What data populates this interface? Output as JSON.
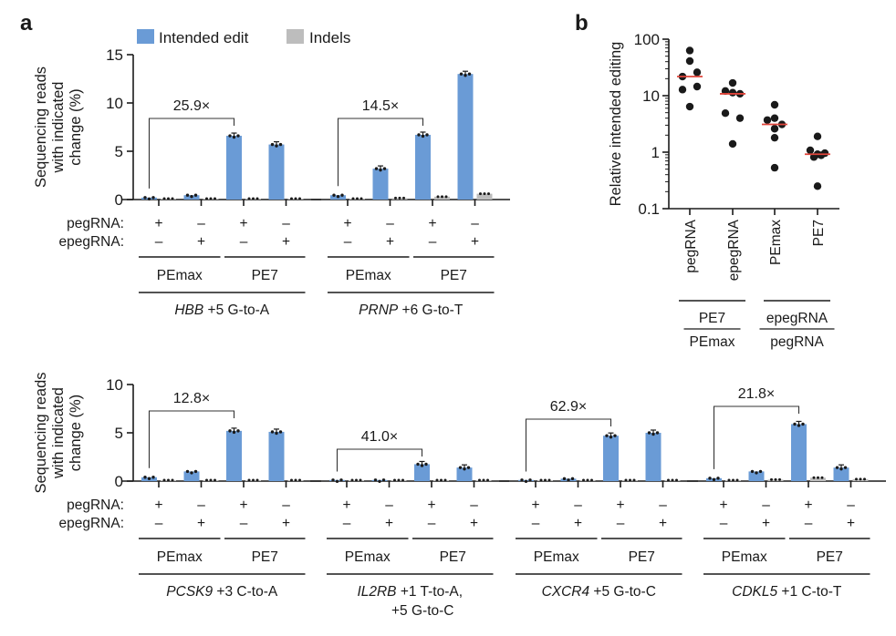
{
  "chart_data": [
    {
      "panel": "a",
      "type": "bar",
      "row": "top",
      "ylabel": [
        "Sequencing reads",
        "with indicated",
        "change (%)"
      ],
      "ylim": [
        0,
        15
      ],
      "yticks": [
        0,
        5,
        10,
        15
      ],
      "legend": {
        "position": "top",
        "entries": [
          {
            "name": "Intended edit",
            "color": "#6a9bd6"
          },
          {
            "name": "Indels",
            "color": "#bdbdbd"
          }
        ]
      },
      "row_labels": {
        "peg": "pegRNA:",
        "epeg": "epegRNA:"
      },
      "targets": [
        {
          "gene": "HBB",
          "edit": " +5 G-to-A",
          "edit_line2": "",
          "fold_change": "25.9×",
          "conditions": [
            {
              "editor": "PEmax",
              "pegRNA": "+",
              "epegRNA": "–",
              "intended": 0.2,
              "indels": 0.05
            },
            {
              "editor": "PEmax",
              "pegRNA": "–",
              "epegRNA": "+",
              "intended": 0.45,
              "indels": 0.05
            },
            {
              "editor": "PE7",
              "pegRNA": "+",
              "epegRNA": "–",
              "intended": 6.6,
              "indels": 0.1
            },
            {
              "editor": "PE7",
              "pegRNA": "–",
              "epegRNA": "+",
              "intended": 5.7,
              "indels": 0.08
            }
          ]
        },
        {
          "gene": "PRNP",
          "edit": " +6 G-to-T",
          "edit_line2": "",
          "fold_change": "14.5×",
          "conditions": [
            {
              "editor": "PEmax",
              "pegRNA": "+",
              "epegRNA": "–",
              "intended": 0.45,
              "indels": 0.1
            },
            {
              "editor": "PEmax",
              "pegRNA": "–",
              "epegRNA": "+",
              "intended": 3.2,
              "indels": 0.15
            },
            {
              "editor": "PE7",
              "pegRNA": "+",
              "epegRNA": "–",
              "intended": 6.7,
              "indels": 0.3
            },
            {
              "editor": "PE7",
              "pegRNA": "–",
              "epegRNA": "+",
              "intended": 13.0,
              "indels": 0.6
            }
          ]
        }
      ]
    },
    {
      "panel": "a",
      "type": "bar",
      "row": "bottom",
      "ylabel": [
        "Sequencing reads",
        "with indicated",
        "change (%)"
      ],
      "ylim": [
        0,
        10
      ],
      "yticks": [
        0,
        5,
        10
      ],
      "row_labels": {
        "peg": "pegRNA:",
        "epeg": "epegRNA:"
      },
      "targets": [
        {
          "gene": "PCSK9",
          "edit": " +3 C-to-A",
          "edit_line2": "",
          "fold_change": "12.8×",
          "conditions": [
            {
              "editor": "PEmax",
              "pegRNA": "+",
              "epegRNA": "–",
              "intended": 0.4,
              "indels": 0.03
            },
            {
              "editor": "PEmax",
              "pegRNA": "–",
              "epegRNA": "+",
              "intended": 1.0,
              "indels": 0.03
            },
            {
              "editor": "PE7",
              "pegRNA": "+",
              "epegRNA": "–",
              "intended": 5.2,
              "indels": 0.1
            },
            {
              "editor": "PE7",
              "pegRNA": "–",
              "epegRNA": "+",
              "intended": 5.1,
              "indels": 0.08
            }
          ]
        },
        {
          "gene": "IL2RB",
          "edit": " +1 T-to-A,",
          "edit_line2": "+5 G-to-C",
          "fold_change": "41.0×",
          "conditions": [
            {
              "editor": "PEmax",
              "pegRNA": "+",
              "epegRNA": "–",
              "intended": 0.05,
              "indels": 0.03
            },
            {
              "editor": "PEmax",
              "pegRNA": "–",
              "epegRNA": "+",
              "intended": 0.1,
              "indels": 0.03
            },
            {
              "editor": "PE7",
              "pegRNA": "+",
              "epegRNA": "–",
              "intended": 1.75,
              "indels": 0.03
            },
            {
              "editor": "PE7",
              "pegRNA": "–",
              "epegRNA": "+",
              "intended": 1.4,
              "indels": 0.05
            }
          ]
        },
        {
          "gene": "CXCR4",
          "edit": " +5 G-to-C",
          "edit_line2": "",
          "fold_change": "62.9×",
          "conditions": [
            {
              "editor": "PEmax",
              "pegRNA": "+",
              "epegRNA": "–",
              "intended": 0.05,
              "indels": 0.03
            },
            {
              "editor": "PEmax",
              "pegRNA": "–",
              "epegRNA": "+",
              "intended": 0.25,
              "indels": 0.08
            },
            {
              "editor": "PE7",
              "pegRNA": "+",
              "epegRNA": "–",
              "intended": 4.7,
              "indels": 0.08
            },
            {
              "editor": "PE7",
              "pegRNA": "–",
              "epegRNA": "+",
              "intended": 5.0,
              "indels": 0.08
            }
          ]
        },
        {
          "gene": "CDKL5",
          "edit": " +1 C-to-T",
          "edit_line2": "",
          "fold_change": "21.8×",
          "conditions": [
            {
              "editor": "PEmax",
              "pegRNA": "+",
              "epegRNA": "–",
              "intended": 0.3,
              "indels": 0.1
            },
            {
              "editor": "PEmax",
              "pegRNA": "–",
              "epegRNA": "+",
              "intended": 1.0,
              "indels": 0.15
            },
            {
              "editor": "PE7",
              "pegRNA": "+",
              "epegRNA": "–",
              "intended": 5.9,
              "indels": 0.35
            },
            {
              "editor": "PE7",
              "pegRNA": "–",
              "epegRNA": "+",
              "intended": 1.4,
              "indels": 0.2
            }
          ]
        }
      ]
    },
    {
      "panel": "b",
      "type": "scatter",
      "ylabel": "Relative intended editing",
      "yscale": "log",
      "ylim": [
        0.1,
        100
      ],
      "yticks": [
        "0.1",
        "1",
        "10",
        "100"
      ],
      "categories": [
        "pegRNA",
        "epegRNA",
        "PEmax",
        "PE7"
      ],
      "median_color": "#e0443a",
      "groups": [
        {
          "numerator": "PE7",
          "denominator": "PEmax",
          "categories": [
            "pegRNA",
            "epegRNA"
          ]
        },
        {
          "numerator": "epegRNA",
          "denominator": "pegRNA",
          "categories": [
            "PEmax",
            "PE7"
          ]
        }
      ],
      "series": [
        {
          "name": "pegRNA",
          "values": [
            62.9,
            41.0,
            25.9,
            21.8,
            14.5,
            12.8,
            6.4
          ],
          "median": 21.8
        },
        {
          "name": "epegRNA",
          "values": [
            16.8,
            12.1,
            11.3,
            10.8,
            4.9,
            4.0,
            1.4
          ],
          "median": 10.8
        },
        {
          "name": "PEmax",
          "values": [
            6.9,
            4.0,
            3.7,
            3.1,
            2.6,
            1.8,
            0.53
          ],
          "median": 3.1
        },
        {
          "name": "PE7",
          "values": [
            1.9,
            1.08,
            0.96,
            0.92,
            0.88,
            0.82,
            0.25
          ],
          "median": 0.92
        }
      ]
    }
  ],
  "panel_letters": {
    "a": "a",
    "b": "b"
  }
}
